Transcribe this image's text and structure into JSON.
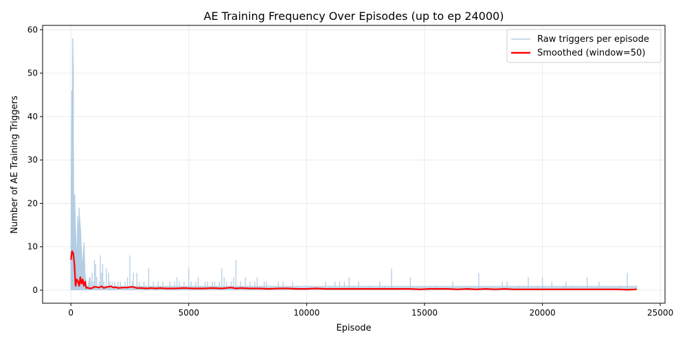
{
  "chart_data": {
    "type": "line",
    "title": "AE Training Frequency Over Episodes (up to ep 24000)",
    "xlabel": "Episode",
    "ylabel": "Number of AE Training Triggers",
    "xlim": [
      -1200,
      25200
    ],
    "ylim": [
      -3,
      61
    ],
    "x_ticks": [
      0,
      5000,
      10000,
      15000,
      20000,
      25000
    ],
    "y_ticks": [
      0,
      10,
      20,
      30,
      40,
      50,
      60
    ],
    "grid": true,
    "legend_position": "top-right",
    "colors": {
      "raw": "#b3cde3",
      "smoothed": "#ff0000",
      "grid": "#e6e6e6"
    },
    "series": [
      {
        "name": "Raw triggers per episode",
        "style": "thin-light-blue",
        "x": [
          0,
          20,
          40,
          60,
          80,
          100,
          120,
          140,
          160,
          180,
          200,
          230,
          260,
          290,
          320,
          350,
          380,
          410,
          440,
          470,
          500,
          530,
          560,
          600,
          640,
          680,
          720,
          760,
          800,
          850,
          900,
          950,
          1000,
          1050,
          1100,
          1150,
          1200,
          1250,
          1300,
          1350,
          1400,
          1500,
          1550,
          1600,
          1650,
          1700,
          1750,
          1800,
          1850,
          1900,
          2000,
          2100,
          2200,
          2300,
          2400,
          2500,
          2600,
          2650,
          2700,
          2800,
          2900,
          3000,
          3100,
          3200,
          3300,
          3400,
          3500,
          3600,
          3700,
          3800,
          3900,
          4000,
          4100,
          4200,
          4300,
          4400,
          4500,
          4600,
          4700,
          4800,
          4900,
          5000,
          5100,
          5200,
          5300,
          5400,
          5500,
          5600,
          5700,
          5800,
          5900,
          6000,
          6100,
          6200,
          6300,
          6400,
          6500,
          6600,
          6700,
          6800,
          6900,
          7000,
          7100,
          7200,
          7300,
          7400,
          7500,
          7600,
          7700,
          7800,
          7900,
          8000,
          8100,
          8200,
          8300,
          8500,
          8800,
          9000,
          9200,
          9400,
          9600,
          10800,
          11000,
          11200,
          11400,
          11600,
          11800,
          12000,
          12200,
          12700,
          13100,
          13300,
          13600,
          14400,
          15500,
          16200,
          16900,
          17300,
          18300,
          18500,
          19000,
          19400,
          19800,
          20000,
          20400,
          20900,
          21000,
          21300,
          21900,
          22400,
          23300,
          23600,
          24000
        ],
        "values": [
          9,
          31,
          46,
          39,
          58,
          52,
          23,
          20,
          22,
          18,
          14,
          10,
          8,
          17,
          12,
          19,
          16,
          14,
          10,
          7,
          6,
          9,
          11,
          4,
          2,
          0,
          1,
          2,
          3,
          2,
          4,
          2,
          7,
          6,
          3,
          1,
          2,
          8,
          4,
          6,
          2,
          5,
          1,
          4,
          2,
          1,
          2,
          0,
          2,
          1,
          2,
          2,
          1,
          2,
          3,
          8,
          2,
          4,
          1,
          4,
          2,
          1,
          2,
          1,
          5,
          1,
          2,
          1,
          2,
          1,
          2,
          1,
          1,
          2,
          1,
          2,
          3,
          2,
          1,
          2,
          1,
          5,
          2,
          1,
          2,
          3,
          1,
          1,
          2,
          2,
          1,
          2,
          2,
          1,
          2,
          5,
          3,
          2,
          1,
          2,
          3,
          7,
          1,
          2,
          1,
          3,
          1,
          2,
          1,
          2,
          3,
          1,
          1,
          2,
          2,
          1,
          2,
          2,
          1,
          2,
          1,
          2,
          1,
          2,
          2,
          2,
          3,
          1,
          2,
          1,
          2,
          1,
          5,
          3,
          1,
          2,
          1,
          4,
          2,
          2,
          1,
          3,
          1,
          3,
          2,
          1,
          2,
          1,
          3,
          2,
          1,
          4,
          1
        ]
      },
      {
        "name": "Smoothed (window=50)",
        "style": "thick-red",
        "x": [
          0,
          50,
          100,
          150,
          200,
          250,
          300,
          350,
          400,
          450,
          500,
          550,
          600,
          650,
          700,
          800,
          900,
          1000,
          1100,
          1200,
          1300,
          1400,
          1500,
          1600,
          1700,
          1800,
          1900,
          2000,
          2200,
          2400,
          2600,
          2800,
          3000,
          3200,
          3400,
          3600,
          3800,
          4000,
          4400,
          4800,
          5200,
          5600,
          6000,
          6400,
          6800,
          7000,
          7200,
          7600,
          8000,
          8400,
          8800,
          9200,
          9600,
          10000,
          10400,
          10800,
          11200,
          11600,
          12000,
          12400,
          12800,
          13200,
          13600,
          14000,
          14400,
          14800,
          15200,
          15600,
          16000,
          16400,
          16800,
          17200,
          17600,
          18000,
          18400,
          18800,
          19200,
          19600,
          20000,
          20400,
          20800,
          21200,
          21600,
          22000,
          22400,
          22800,
          23200,
          23600,
          24000
        ],
        "values": [
          7,
          9,
          8.5,
          6,
          1,
          2.5,
          2,
          1,
          3,
          1.5,
          2.5,
          1,
          2,
          0.5,
          0.6,
          0.4,
          0.5,
          0.8,
          0.7,
          0.6,
          0.9,
          0.5,
          0.7,
          0.8,
          0.9,
          0.6,
          0.7,
          0.5,
          0.6,
          0.6,
          0.8,
          0.5,
          0.5,
          0.4,
          0.5,
          0.4,
          0.5,
          0.4,
          0.4,
          0.5,
          0.4,
          0.4,
          0.5,
          0.4,
          0.6,
          0.4,
          0.5,
          0.4,
          0.4,
          0.3,
          0.4,
          0.4,
          0.3,
          0.3,
          0.4,
          0.3,
          0.3,
          0.3,
          0.3,
          0.3,
          0.3,
          0.3,
          0.3,
          0.3,
          0.3,
          0.2,
          0.3,
          0.3,
          0.3,
          0.2,
          0.3,
          0.2,
          0.3,
          0.2,
          0.3,
          0.2,
          0.2,
          0.2,
          0.2,
          0.2,
          0.2,
          0.2,
          0.2,
          0.2,
          0.2,
          0.2,
          0.2,
          0.1,
          0.2
        ]
      }
    ]
  }
}
